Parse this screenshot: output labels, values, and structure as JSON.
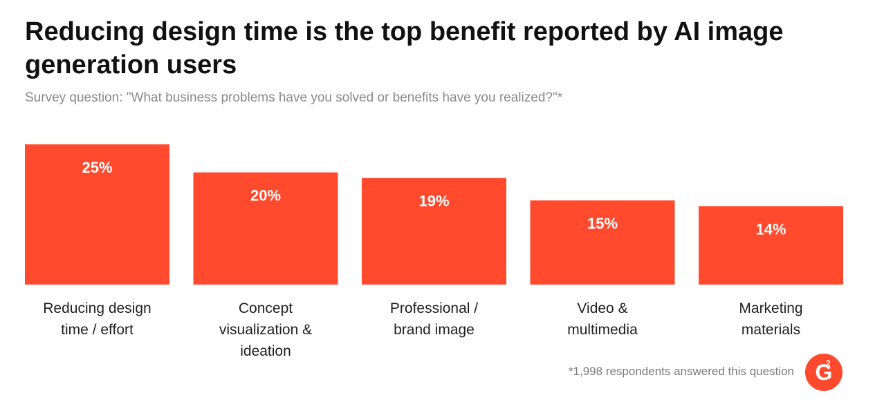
{
  "chart_data": {
    "type": "bar",
    "title": "Reducing design time is the top benefit reported by AI image generation users",
    "subtitle": "Survey question: \"What business problems have you solved or benefits have you realized?\"*",
    "categories": [
      [
        "Reducing design",
        "time / effort"
      ],
      [
        "Concept",
        "visualization &",
        "ideation"
      ],
      [
        "Professional /",
        "brand image"
      ],
      [
        "Video &",
        "multimedia"
      ],
      [
        "Marketing",
        "materials"
      ]
    ],
    "values": [
      25,
      20,
      19,
      15,
      14
    ],
    "value_labels": [
      "25%",
      "20%",
      "19%",
      "15%",
      "14%"
    ],
    "unit": "%",
    "ylim": [
      0,
      25
    ],
    "grid": false,
    "legend": "none",
    "bar_color": "#ff4a2e"
  },
  "footnote": "*1,998 respondents answered this question",
  "logo": {
    "text": "G",
    "superscript": "2",
    "color": "#ff492c"
  }
}
